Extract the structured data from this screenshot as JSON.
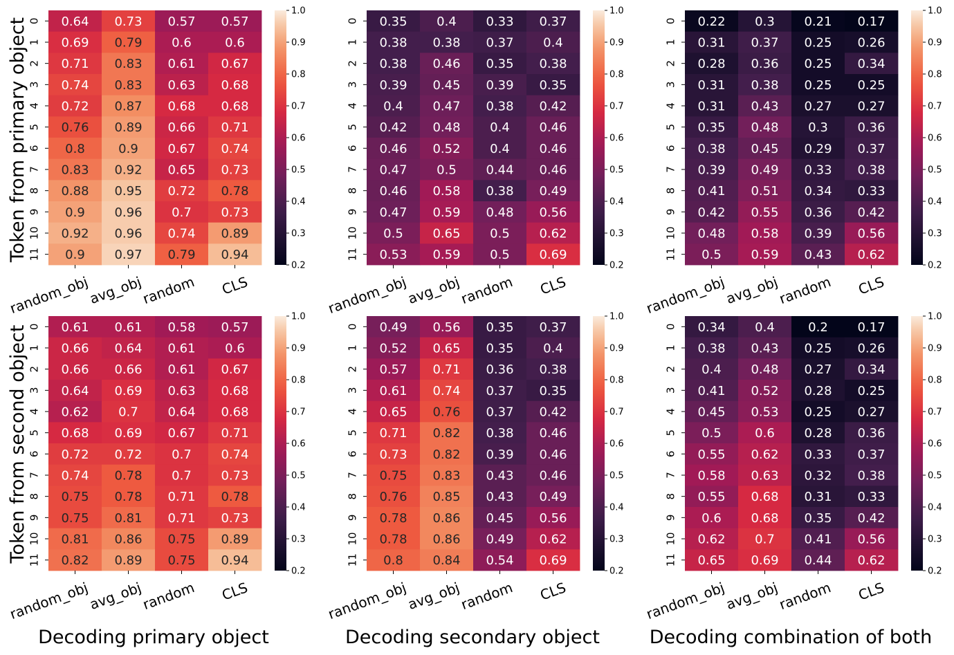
{
  "figure": {
    "row_labels": [
      "Token from primary object",
      "Token from second object"
    ],
    "column_titles": [
      "Decoding primary object",
      "Decoding secondary object",
      "Decoding combination of both"
    ]
  },
  "chart_data": [
    {
      "type": "heatmap",
      "panel": "primary_object/decoding_primary",
      "x": [
        "random_obj",
        "avg_obj",
        "random",
        "CLS"
      ],
      "y": [
        "0",
        "1",
        "2",
        "3",
        "4",
        "5",
        "6",
        "7",
        "8",
        "9",
        "10",
        "11"
      ],
      "values": [
        [
          0.64,
          0.73,
          0.57,
          0.57
        ],
        [
          0.69,
          0.79,
          0.6,
          0.6
        ],
        [
          0.71,
          0.83,
          0.61,
          0.67
        ],
        [
          0.74,
          0.83,
          0.63,
          0.68
        ],
        [
          0.72,
          0.87,
          0.68,
          0.68
        ],
        [
          0.76,
          0.89,
          0.66,
          0.71
        ],
        [
          0.8,
          0.9,
          0.67,
          0.74
        ],
        [
          0.83,
          0.92,
          0.65,
          0.73
        ],
        [
          0.88,
          0.95,
          0.72,
          0.78
        ],
        [
          0.9,
          0.96,
          0.7,
          0.73
        ],
        [
          0.92,
          0.96,
          0.74,
          0.89
        ],
        [
          0.9,
          0.97,
          0.79,
          0.94
        ]
      ],
      "colorbar": {
        "range": [
          0.2,
          1.0
        ],
        "ticks": [
          "0.2",
          "0.3",
          "0.4",
          "0.5",
          "0.6",
          "0.7",
          "0.8",
          "0.9",
          "1.0"
        ]
      },
      "colormap": "rocket"
    },
    {
      "type": "heatmap",
      "panel": "primary_object/decoding_secondary",
      "x": [
        "random_obj",
        "avg_obj",
        "random",
        "CLS"
      ],
      "y": [
        "0",
        "1",
        "2",
        "3",
        "4",
        "5",
        "6",
        "7",
        "8",
        "9",
        "10",
        "11"
      ],
      "values": [
        [
          0.35,
          0.4,
          0.33,
          0.37
        ],
        [
          0.38,
          0.38,
          0.37,
          0.4
        ],
        [
          0.38,
          0.46,
          0.35,
          0.38
        ],
        [
          0.39,
          0.45,
          0.39,
          0.35
        ],
        [
          0.4,
          0.47,
          0.38,
          0.42
        ],
        [
          0.42,
          0.48,
          0.4,
          0.46
        ],
        [
          0.46,
          0.52,
          0.4,
          0.46
        ],
        [
          0.47,
          0.5,
          0.44,
          0.46
        ],
        [
          0.46,
          0.58,
          0.38,
          0.49
        ],
        [
          0.47,
          0.59,
          0.48,
          0.56
        ],
        [
          0.5,
          0.65,
          0.5,
          0.62
        ],
        [
          0.53,
          0.59,
          0.5,
          0.69
        ]
      ],
      "colorbar": {
        "range": [
          0.2,
          1.0
        ],
        "ticks": [
          "0.2",
          "0.3",
          "0.4",
          "0.5",
          "0.6",
          "0.7",
          "0.8",
          "0.9",
          "1.0"
        ]
      },
      "colormap": "rocket"
    },
    {
      "type": "heatmap",
      "panel": "primary_object/decoding_both",
      "x": [
        "random_obj",
        "avg_obj",
        "random",
        "CLS"
      ],
      "y": [
        "0",
        "1",
        "2",
        "3",
        "4",
        "5",
        "6",
        "7",
        "8",
        "9",
        "10",
        "11"
      ],
      "values": [
        [
          0.22,
          0.3,
          0.21,
          0.17
        ],
        [
          0.31,
          0.37,
          0.25,
          0.26
        ],
        [
          0.28,
          0.36,
          0.25,
          0.34
        ],
        [
          0.31,
          0.38,
          0.25,
          0.25
        ],
        [
          0.31,
          0.43,
          0.27,
          0.27
        ],
        [
          0.35,
          0.48,
          0.3,
          0.36
        ],
        [
          0.38,
          0.45,
          0.29,
          0.37
        ],
        [
          0.39,
          0.49,
          0.33,
          0.38
        ],
        [
          0.41,
          0.51,
          0.34,
          0.33
        ],
        [
          0.42,
          0.55,
          0.36,
          0.42
        ],
        [
          0.48,
          0.58,
          0.39,
          0.56
        ],
        [
          0.5,
          0.59,
          0.43,
          0.62
        ]
      ],
      "colorbar": {
        "range": [
          0.2,
          1.0
        ],
        "ticks": [
          "0.2",
          "0.3",
          "0.4",
          "0.5",
          "0.6",
          "0.7",
          "0.8",
          "0.9",
          "1.0"
        ]
      },
      "colormap": "rocket"
    },
    {
      "type": "heatmap",
      "panel": "second_object/decoding_primary",
      "x": [
        "random_obj",
        "avg_obj",
        "random",
        "CLS"
      ],
      "y": [
        "0",
        "1",
        "2",
        "3",
        "4",
        "5",
        "6",
        "7",
        "8",
        "9",
        "10",
        "11"
      ],
      "values": [
        [
          0.61,
          0.61,
          0.58,
          0.57
        ],
        [
          0.66,
          0.64,
          0.61,
          0.6
        ],
        [
          0.66,
          0.66,
          0.61,
          0.67
        ],
        [
          0.64,
          0.69,
          0.63,
          0.68
        ],
        [
          0.62,
          0.7,
          0.64,
          0.68
        ],
        [
          0.68,
          0.69,
          0.67,
          0.71
        ],
        [
          0.72,
          0.72,
          0.7,
          0.74
        ],
        [
          0.74,
          0.78,
          0.7,
          0.73
        ],
        [
          0.75,
          0.78,
          0.71,
          0.78
        ],
        [
          0.75,
          0.81,
          0.71,
          0.73
        ],
        [
          0.81,
          0.86,
          0.75,
          0.89
        ],
        [
          0.82,
          0.89,
          0.75,
          0.94
        ]
      ],
      "colorbar": {
        "range": [
          0.2,
          1.0
        ],
        "ticks": [
          "0.2",
          "0.3",
          "0.4",
          "0.5",
          "0.6",
          "0.7",
          "0.8",
          "0.9",
          "1.0"
        ]
      },
      "colormap": "rocket"
    },
    {
      "type": "heatmap",
      "panel": "second_object/decoding_secondary",
      "x": [
        "random_obj",
        "avg_obj",
        "random",
        "CLS"
      ],
      "y": [
        "0",
        "1",
        "2",
        "3",
        "4",
        "5",
        "6",
        "7",
        "8",
        "9",
        "10",
        "11"
      ],
      "values": [
        [
          0.49,
          0.56,
          0.35,
          0.37
        ],
        [
          0.52,
          0.65,
          0.35,
          0.4
        ],
        [
          0.57,
          0.71,
          0.36,
          0.38
        ],
        [
          0.61,
          0.74,
          0.37,
          0.35
        ],
        [
          0.65,
          0.76,
          0.37,
          0.42
        ],
        [
          0.71,
          0.82,
          0.38,
          0.46
        ],
        [
          0.73,
          0.82,
          0.39,
          0.46
        ],
        [
          0.75,
          0.83,
          0.43,
          0.46
        ],
        [
          0.76,
          0.85,
          0.43,
          0.49
        ],
        [
          0.78,
          0.86,
          0.45,
          0.56
        ],
        [
          0.78,
          0.86,
          0.49,
          0.62
        ],
        [
          0.8,
          0.84,
          0.54,
          0.69
        ]
      ],
      "colorbar": {
        "range": [
          0.2,
          1.0
        ],
        "ticks": [
          "0.2",
          "0.3",
          "0.4",
          "0.5",
          "0.6",
          "0.7",
          "0.8",
          "0.9",
          "1.0"
        ]
      },
      "colormap": "rocket"
    },
    {
      "type": "heatmap",
      "panel": "second_object/decoding_both",
      "x": [
        "random_obj",
        "avg_obj",
        "random",
        "CLS"
      ],
      "y": [
        "0",
        "1",
        "2",
        "3",
        "4",
        "5",
        "6",
        "7",
        "8",
        "9",
        "10",
        "11"
      ],
      "values": [
        [
          0.34,
          0.4,
          0.2,
          0.17
        ],
        [
          0.38,
          0.43,
          0.25,
          0.26
        ],
        [
          0.4,
          0.48,
          0.27,
          0.34
        ],
        [
          0.41,
          0.52,
          0.28,
          0.25
        ],
        [
          0.45,
          0.53,
          0.25,
          0.27
        ],
        [
          0.5,
          0.6,
          0.28,
          0.36
        ],
        [
          0.55,
          0.62,
          0.33,
          0.37
        ],
        [
          0.58,
          0.63,
          0.32,
          0.38
        ],
        [
          0.55,
          0.68,
          0.31,
          0.33
        ],
        [
          0.6,
          0.68,
          0.35,
          0.42
        ],
        [
          0.62,
          0.7,
          0.41,
          0.56
        ],
        [
          0.65,
          0.69,
          0.44,
          0.62
        ]
      ],
      "colorbar": {
        "range": [
          0.2,
          1.0
        ],
        "ticks": [
          "0.2",
          "0.3",
          "0.4",
          "0.5",
          "0.6",
          "0.7",
          "0.8",
          "0.9",
          "1.0"
        ]
      },
      "colormap": "rocket"
    }
  ]
}
